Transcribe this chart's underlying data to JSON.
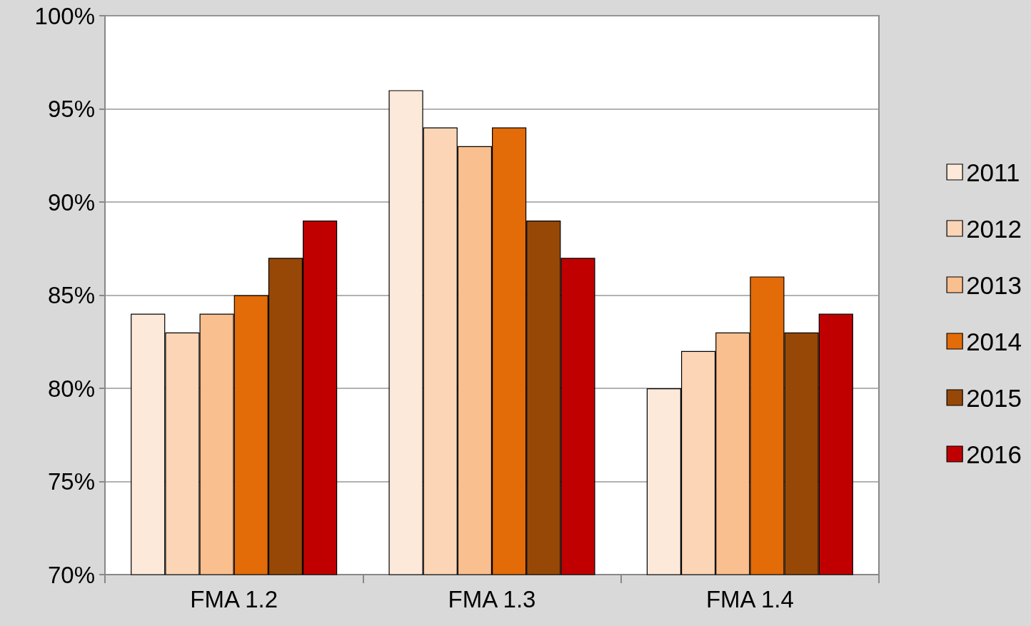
{
  "chart_data": {
    "type": "bar",
    "categories": [
      "FMA 1.2",
      "FMA 1.3",
      "FMA 1.4"
    ],
    "series": [
      {
        "name": "2011",
        "color": "#fde9d9",
        "values": [
          84,
          96,
          80
        ]
      },
      {
        "name": "2012",
        "color": "#fbd5b5",
        "values": [
          83,
          94,
          82
        ]
      },
      {
        "name": "2013",
        "color": "#fabf8f",
        "values": [
          84,
          93,
          83
        ]
      },
      {
        "name": "2014",
        "color": "#e36c09",
        "values": [
          85,
          94,
          86
        ]
      },
      {
        "name": "2015",
        "color": "#974806",
        "values": [
          87,
          89,
          83
        ]
      },
      {
        "name": "2016",
        "color": "#c00000",
        "values": [
          89,
          87,
          84
        ]
      }
    ],
    "ylim": [
      70,
      100
    ],
    "yticks": [
      {
        "value": 70,
        "label": "70%"
      },
      {
        "value": 75,
        "label": "75%"
      },
      {
        "value": 80,
        "label": "80%"
      },
      {
        "value": 85,
        "label": "85%"
      },
      {
        "value": 90,
        "label": "90%"
      },
      {
        "value": 95,
        "label": "95%"
      },
      {
        "value": 100,
        "label": "100%"
      }
    ],
    "grid": "y",
    "legend": "right"
  }
}
